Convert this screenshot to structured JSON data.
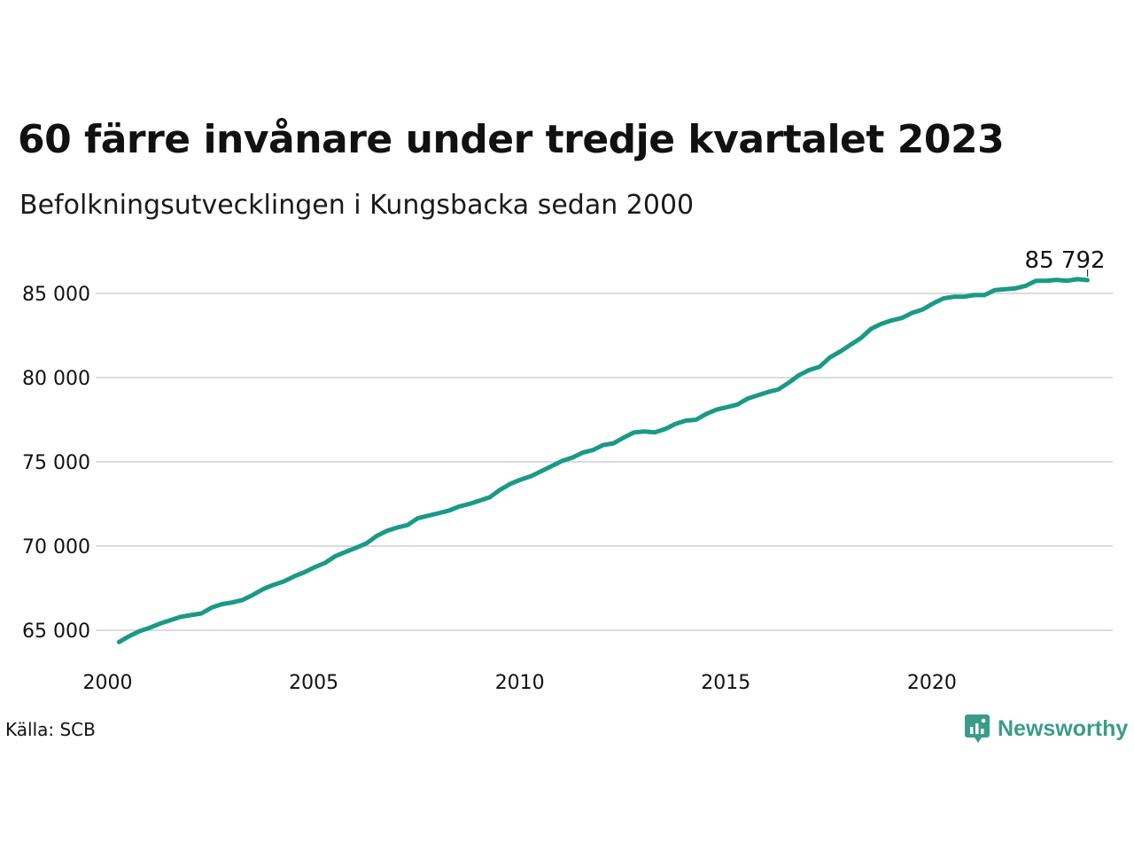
{
  "title": "60 färre invånare under tredje kvartalet 2023",
  "subtitle": "Befolkningsutvecklingen i Kungsbacka sedan 2000",
  "source": "Källa: SCB",
  "brand": {
    "name": "Newsworthy",
    "icon": "newsworthy-logo-icon",
    "color": "#3a9c88"
  },
  "chart_data": {
    "type": "line",
    "title": "60 färre invånare under tredje kvartalet 2023",
    "subtitle": "Befolkningsutvecklingen i Kungsbacka sedan 2000",
    "xlabel": "",
    "ylabel": "",
    "line_color": "#1a9a86",
    "grid": true,
    "xlim": [
      2000,
      2024.5
    ],
    "ylim": [
      63000,
      87000
    ],
    "x_ticks": [
      2000,
      2005,
      2010,
      2015,
      2020
    ],
    "x_tick_labels": [
      "2000",
      "2005",
      "2010",
      "2015",
      "2020"
    ],
    "y_ticks": [
      65000,
      70000,
      75000,
      80000,
      85000
    ],
    "y_tick_labels": [
      "65 000",
      "70 000",
      "75 000",
      "80 000",
      "85 000"
    ],
    "end_label": "85 792",
    "series": [
      {
        "x": [
          2000.125,
          2000.375,
          2000.625,
          2000.875,
          2001.125,
          2001.375,
          2001.625,
          2001.875,
          2002.125,
          2002.375,
          2002.625,
          2002.875,
          2003.125,
          2003.375,
          2003.625,
          2003.875,
          2004.125,
          2004.375,
          2004.625,
          2004.875,
          2005.125,
          2005.375,
          2005.625,
          2005.875,
          2006.125,
          2006.375,
          2006.625,
          2006.875,
          2007.125,
          2007.375,
          2007.625,
          2007.875,
          2008.125,
          2008.375,
          2008.625,
          2008.875,
          2009.125,
          2009.375,
          2009.625,
          2009.875,
          2010.125,
          2010.375,
          2010.625,
          2010.875,
          2011.125,
          2011.375,
          2011.625,
          2011.875,
          2012.125,
          2012.375,
          2012.625,
          2012.875,
          2013.125,
          2013.375,
          2013.625,
          2013.875,
          2014.125,
          2014.375,
          2014.625,
          2014.875,
          2015.125,
          2015.375,
          2015.625,
          2015.875,
          2016.125,
          2016.375,
          2016.625,
          2016.875,
          2017.125,
          2017.375,
          2017.625,
          2017.875,
          2018.125,
          2018.375,
          2018.625,
          2018.875,
          2019.125,
          2019.375,
          2019.625,
          2019.875,
          2020.125,
          2020.375,
          2020.625,
          2020.875,
          2021.125,
          2021.375,
          2021.625,
          2021.875,
          2022.125,
          2022.375,
          2022.625,
          2022.875,
          2023.125,
          2023.375,
          2023.625
        ],
        "values": [
          64300,
          64650,
          64950,
          65150,
          65400,
          65600,
          65800,
          65900,
          66000,
          66350,
          66550,
          66650,
          66800,
          67100,
          67450,
          67700,
          67900,
          68200,
          68450,
          68750,
          69000,
          69400,
          69650,
          69900,
          70150,
          70600,
          70900,
          71100,
          71250,
          71650,
          71800,
          71950,
          72100,
          72350,
          72500,
          72700,
          72900,
          73350,
          73700,
          73950,
          74150,
          74450,
          74750,
          75050,
          75250,
          75550,
          75700,
          76000,
          76100,
          76450,
          76750,
          76800,
          76750,
          76950,
          77250,
          77450,
          77500,
          77850,
          78100,
          78250,
          78400,
          78750,
          78950,
          79150,
          79300,
          79700,
          80150,
          80450,
          80650,
          81200,
          81550,
          81950,
          82350,
          82900,
          83200,
          83400,
          83550,
          83850,
          84050,
          84400,
          84700,
          84800,
          84800,
          84900,
          84900,
          85200,
          85250,
          85300,
          85450,
          85750,
          85750,
          85800,
          85750,
          85850,
          85792
        ]
      }
    ]
  }
}
